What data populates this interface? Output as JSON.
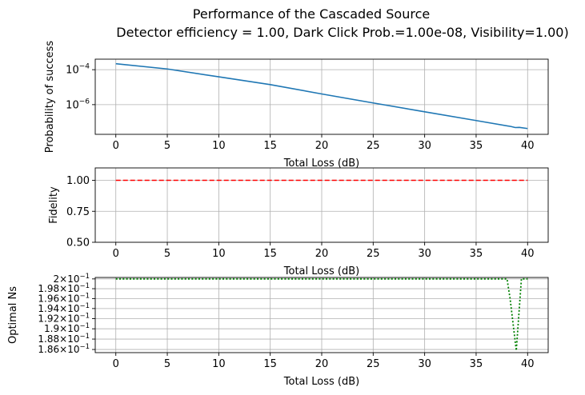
{
  "figure": {
    "title_line1": "Performance of the Cascaded Source",
    "title_line2": "Detector efficiency = 1.00, Dark Click Prob.=1.00e-08, Visibility=1.00)"
  },
  "colors": {
    "line_success": "#1f77b4",
    "line_fidelity": "#ff0000",
    "line_ns": "#008000",
    "grid": "#b0b0b0"
  },
  "chart_data": [
    {
      "type": "line",
      "title": "",
      "xlabel": "Total Loss (dB)",
      "ylabel": "Probability of success",
      "yscale": "log",
      "grid": true,
      "xlim": [
        -2,
        42
      ],
      "ylim": [
        2e-08,
        0.0004
      ],
      "xticks": [
        0,
        5,
        10,
        15,
        20,
        25,
        30,
        35,
        40
      ],
      "yticks": [
        {
          "value": 0.0001,
          "base": "10",
          "exp": "−4"
        },
        {
          "value": 1e-06,
          "base": "10",
          "exp": "−6"
        }
      ],
      "series": [
        {
          "name": "Probability of success",
          "style": "solid",
          "x": [
            0,
            5,
            10,
            15,
            20,
            25,
            30,
            35,
            38.4,
            38.8,
            39.2,
            40
          ],
          "y": [
            0.00022,
            0.00011,
            3.9e-05,
            1.4e-05,
            4.1e-06,
            1.25e-06,
            3.9e-07,
            1.23e-07,
            5.6e-08,
            4.9e-08,
            5e-08,
            4.3e-08
          ]
        }
      ]
    },
    {
      "type": "line",
      "title": "",
      "xlabel": "Total Loss (dB)",
      "ylabel": "Fidelity",
      "yscale": "linear",
      "grid": true,
      "xlim": [
        -2,
        42
      ],
      "ylim": [
        0.5,
        1.1
      ],
      "xticks": [
        0,
        5,
        10,
        15,
        20,
        25,
        30,
        35,
        40
      ],
      "yticks": [
        {
          "value": 0.5,
          "label": "0.50"
        },
        {
          "value": 0.75,
          "label": "0.75"
        },
        {
          "value": 1.0,
          "label": "1.00"
        }
      ],
      "series": [
        {
          "name": "Fidelity",
          "style": "dashed",
          "x": [
            0,
            40
          ],
          "y": [
            1.0,
            1.0
          ]
        }
      ]
    },
    {
      "type": "line",
      "title": "",
      "xlabel": "Total Loss (dB)",
      "ylabel": "Optimal Ns",
      "yscale": "log",
      "grid": true,
      "xlim": [
        -2,
        42
      ],
      "ylim": [
        0.1854,
        0.2003
      ],
      "xticks": [
        0,
        5,
        10,
        15,
        20,
        25,
        30,
        35,
        40
      ],
      "yticks": [
        {
          "value": 0.2,
          "mant": "2",
          "exp": "−1"
        },
        {
          "value": 0.198,
          "mant": "1.98",
          "exp": "−1"
        },
        {
          "value": 0.196,
          "mant": "1.96",
          "exp": "−1"
        },
        {
          "value": 0.194,
          "mant": "1.94",
          "exp": "−1"
        },
        {
          "value": 0.192,
          "mant": "1.92",
          "exp": "−1"
        },
        {
          "value": 0.19,
          "mant": "1.9",
          "exp": "−1"
        },
        {
          "value": 0.188,
          "mant": "1.88",
          "exp": "−1"
        },
        {
          "value": 0.186,
          "mant": "1.86",
          "exp": "−1"
        }
      ],
      "series": [
        {
          "name": "Optimal Ns",
          "style": "dotted",
          "x": [
            0,
            38.0,
            38.3,
            38.9,
            39.4,
            40
          ],
          "y": [
            0.2,
            0.2,
            0.196,
            0.1858,
            0.2,
            0.2
          ]
        }
      ]
    }
  ]
}
